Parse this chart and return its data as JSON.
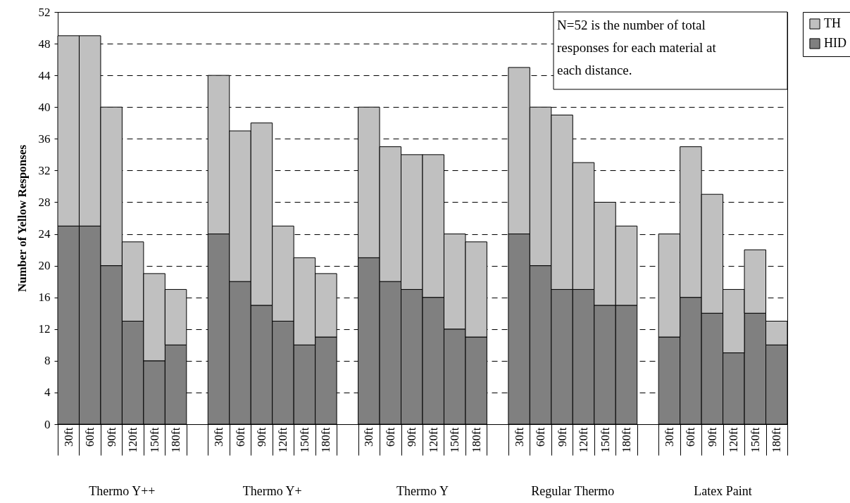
{
  "chart_data": {
    "type": "bar",
    "stacked": true,
    "categories": [
      "30ft",
      "60ft",
      "90ft",
      "120ft",
      "150ft",
      "180ft",
      null,
      "30ft",
      "60ft",
      "90ft",
      "120ft",
      "150ft",
      "180ft",
      null,
      "30ft",
      "60ft",
      "90ft",
      "120ft",
      "150ft",
      "180ft",
      null,
      "30ft",
      "60ft",
      "90ft",
      "120ft",
      "150ft",
      "180ft",
      null,
      "30ft",
      "60ft",
      "90ft",
      "120ft",
      "150ft",
      "180ft"
    ],
    "series": [
      {
        "name": "HID",
        "color": "#808080",
        "values": [
          25,
          25,
          20,
          13,
          8,
          10,
          null,
          24,
          18,
          15,
          13,
          10,
          11,
          null,
          21,
          18,
          17,
          16,
          12,
          11,
          null,
          24,
          20,
          17,
          17,
          15,
          15,
          null,
          11,
          16,
          14,
          9,
          14,
          10
        ]
      },
      {
        "name": "TH",
        "color": "#c0c0c0",
        "values": [
          24,
          24,
          20,
          10,
          11,
          7,
          null,
          20,
          19,
          23,
          12,
          11,
          8,
          null,
          19,
          17,
          17,
          18,
          12,
          12,
          null,
          21,
          20,
          22,
          16,
          13,
          10,
          null,
          13,
          19,
          15,
          8,
          8,
          3
        ]
      }
    ],
    "ylabel": "Number of Yellow Responses",
    "ylim": [
      0,
      52
    ],
    "yticks": [
      0,
      4,
      8,
      12,
      16,
      20,
      24,
      28,
      32,
      36,
      40,
      44,
      48,
      52
    ],
    "grid": "y",
    "legend": "right",
    "annotations": [
      "N=52 is the number of total responses for each material at each distance.",
      "Thermo Y++",
      "Thermo Y+",
      "Thermo Y",
      "Regular Thermo",
      "Latex Paint"
    ]
  }
}
